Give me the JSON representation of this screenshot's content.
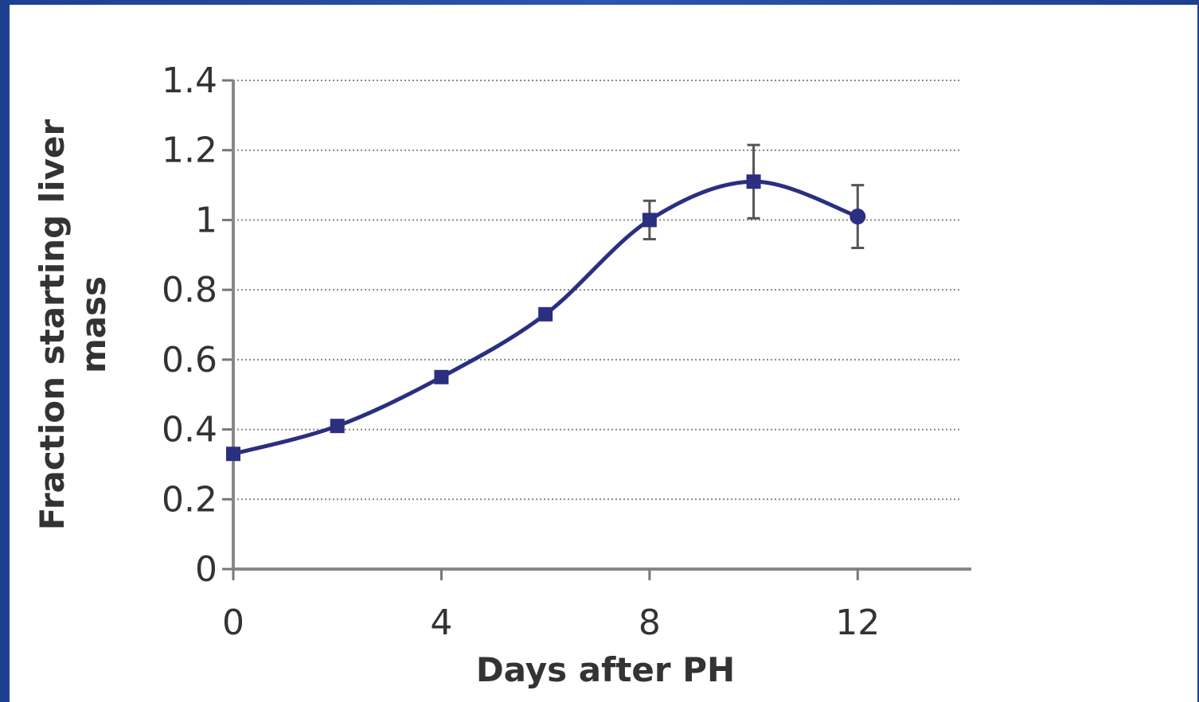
{
  "chart_data": {
    "type": "line",
    "xlabel": "Days after PH",
    "ylabel": [
      "Fraction starting liver",
      "mass"
    ],
    "xlim": [
      0,
      14
    ],
    "ylim": [
      0,
      1.4
    ],
    "x_ticks": [
      "0",
      "4",
      "8",
      "12"
    ],
    "y_ticks": [
      "0",
      "0.2",
      "0.4",
      "0.6",
      "0.8",
      "1",
      "1.2",
      "1.4"
    ],
    "grid": "horizontal dotted",
    "series": [
      {
        "x": [
          0,
          2,
          4,
          6,
          8,
          10,
          12
        ],
        "y": [
          0.33,
          0.41,
          0.55,
          0.73,
          1.0,
          1.11,
          1.01
        ],
        "error": [
          0,
          0,
          0,
          0,
          0.055,
          0.105,
          0.09
        ]
      }
    ],
    "colors": {
      "series": "#2a2f80",
      "frame": "#1d3f8f"
    }
  }
}
